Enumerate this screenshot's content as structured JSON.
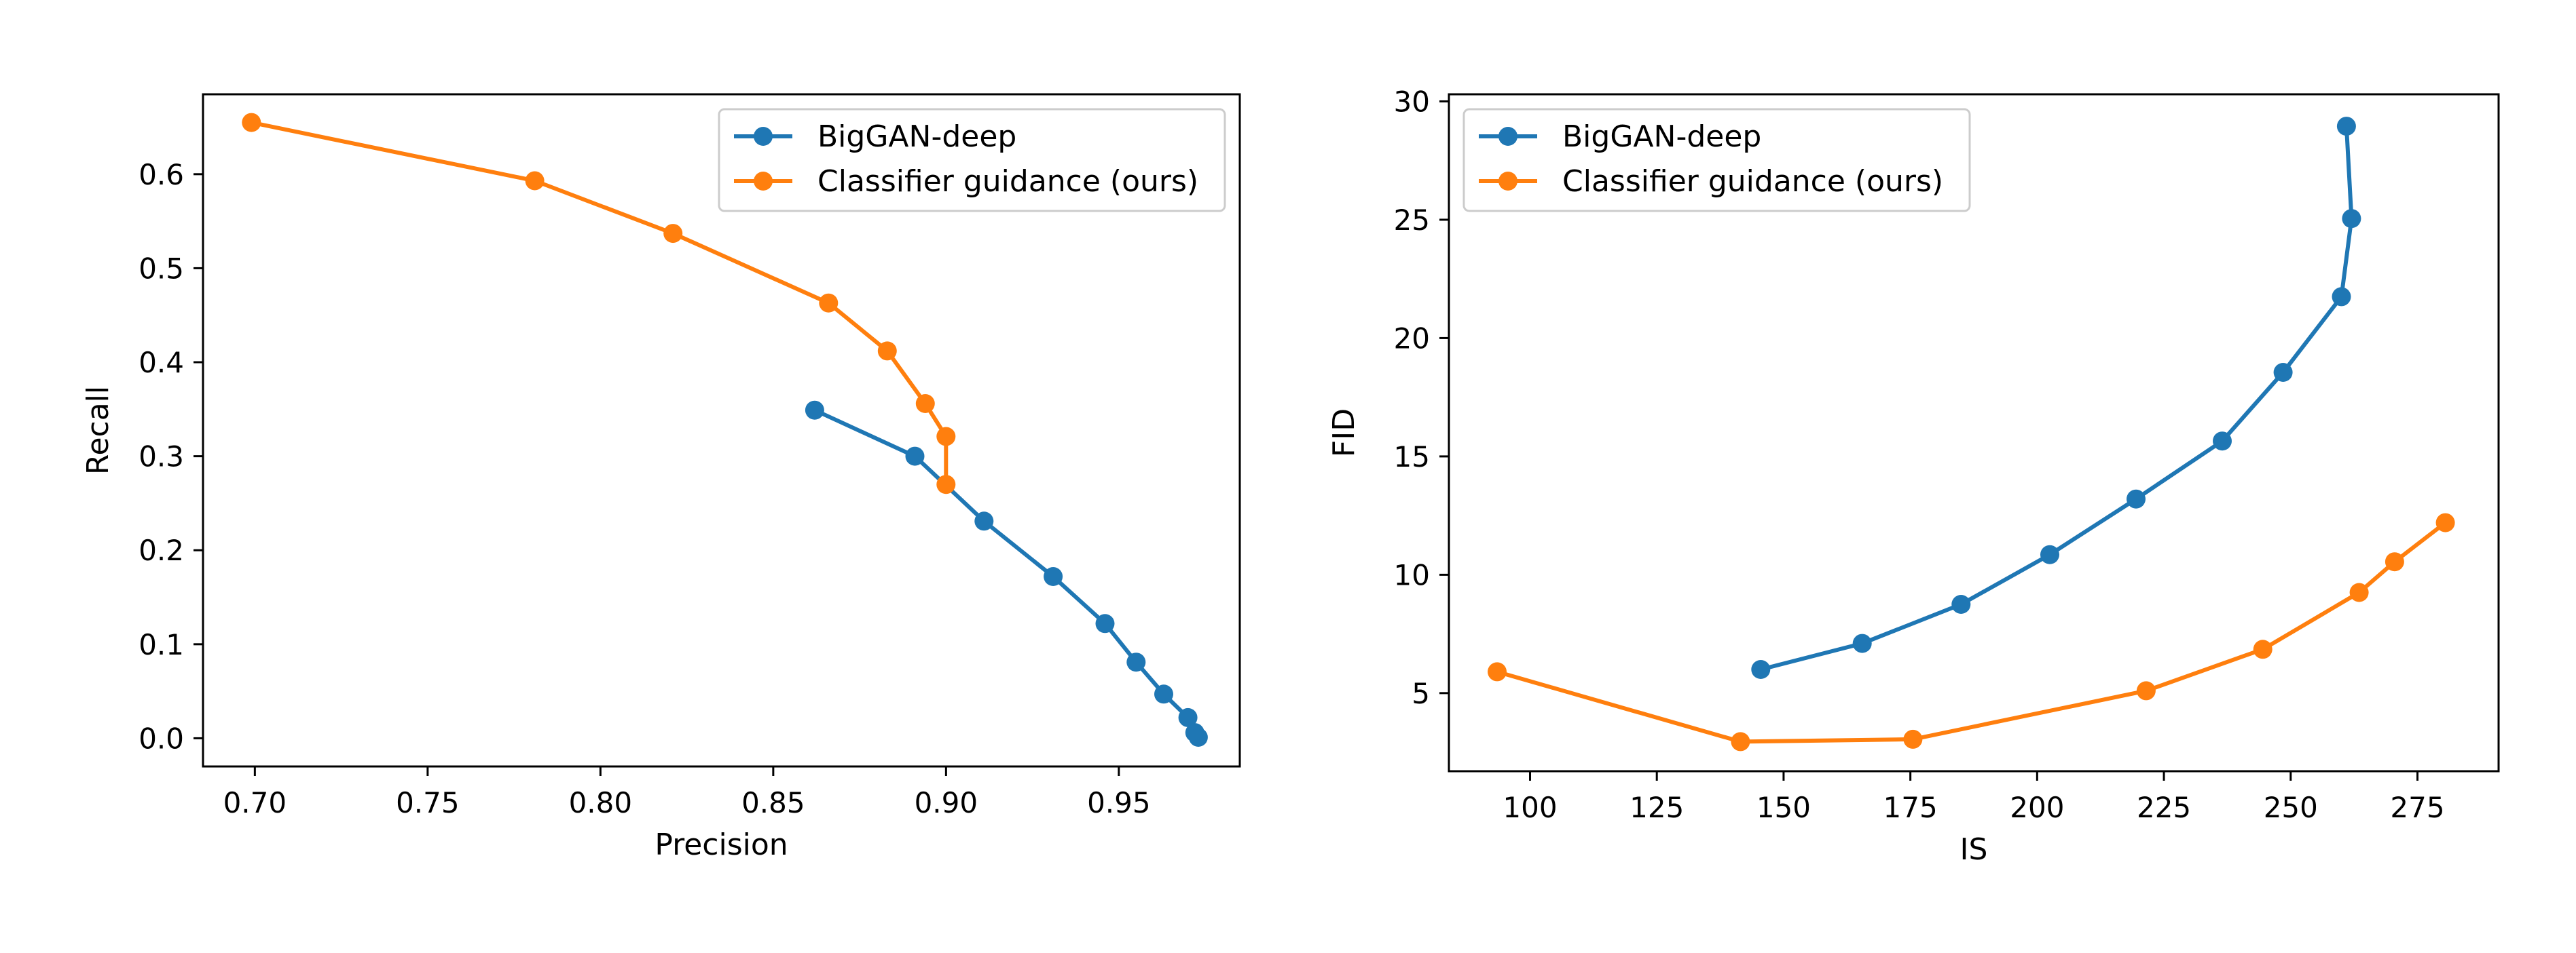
{
  "chart_data": [
    {
      "type": "line",
      "xlabel": "Precision",
      "ylabel": "Recall",
      "xlim": [
        0.685,
        0.985
      ],
      "ylim": [
        -0.03,
        0.685
      ],
      "xticks": [
        0.7,
        0.75,
        0.8,
        0.85,
        0.9,
        0.95
      ],
      "xtick_labels": [
        "0.70",
        "0.75",
        "0.80",
        "0.85",
        "0.90",
        "0.95"
      ],
      "yticks": [
        0.0,
        0.1,
        0.2,
        0.3,
        0.4,
        0.5,
        0.6
      ],
      "ytick_labels": [
        "0.0",
        "0.1",
        "0.2",
        "0.3",
        "0.4",
        "0.5",
        "0.6"
      ],
      "legend_position": "top-right",
      "series": [
        {
          "name": "BigGAN-deep",
          "color": "#1f77b4",
          "marker": "circle",
          "x": [
            0.862,
            0.891,
            0.911,
            0.931,
            0.946,
            0.955,
            0.963,
            0.97,
            0.972,
            0.973
          ],
          "y": [
            0.349,
            0.3,
            0.231,
            0.172,
            0.122,
            0.081,
            0.047,
            0.022,
            0.006,
            0.001
          ]
        },
        {
          "name": "Classifier guidance (ours)",
          "color": "#ff7f0e",
          "marker": "circle",
          "x": [
            0.699,
            0.781,
            0.821,
            0.866,
            0.883,
            0.894,
            0.9,
            0.9
          ],
          "y": [
            0.655,
            0.593,
            0.537,
            0.463,
            0.412,
            0.356,
            0.321,
            0.27
          ]
        }
      ]
    },
    {
      "type": "line",
      "xlabel": "IS",
      "ylabel": "FID",
      "xlim": [
        84,
        291
      ],
      "ylim": [
        1.7,
        30.3
      ],
      "xticks": [
        100,
        125,
        150,
        175,
        200,
        225,
        250,
        275
      ],
      "xtick_labels": [
        "100",
        "125",
        "150",
        "175",
        "200",
        "225",
        "250",
        "275"
      ],
      "yticks": [
        5,
        10,
        15,
        20,
        25,
        30
      ],
      "ytick_labels": [
        "5",
        "10",
        "15",
        "20",
        "25",
        "30"
      ],
      "legend_position": "top-left",
      "series": [
        {
          "name": "BigGAN-deep",
          "color": "#1f77b4",
          "marker": "circle",
          "x": [
            145.5,
            165.5,
            185.0,
            202.5,
            219.5,
            236.5,
            248.5,
            260.0,
            262.0,
            261.0
          ],
          "y": [
            6.0,
            7.1,
            8.75,
            10.85,
            13.2,
            15.65,
            18.55,
            21.75,
            25.05,
            28.95
          ]
        },
        {
          "name": "Classifier guidance (ours)",
          "color": "#ff7f0e",
          "marker": "circle",
          "x": [
            93.5,
            141.5,
            175.5,
            221.5,
            244.5,
            263.5,
            270.5,
            280.5
          ],
          "y": [
            5.9,
            2.95,
            3.05,
            5.1,
            6.85,
            9.25,
            10.55,
            12.2
          ]
        }
      ]
    }
  ]
}
